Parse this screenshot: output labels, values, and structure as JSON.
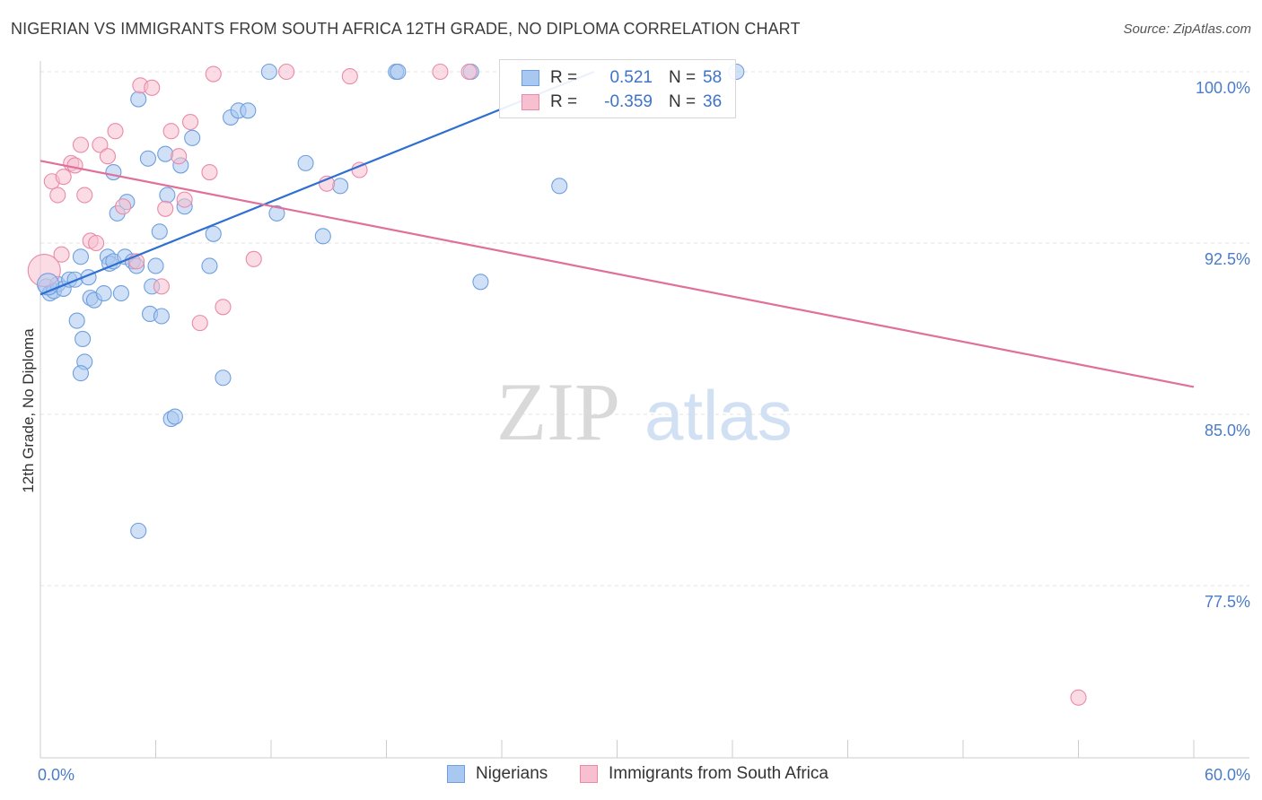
{
  "title": "NIGERIAN VS IMMIGRANTS FROM SOUTH AFRICA 12TH GRADE, NO DIPLOMA CORRELATION CHART",
  "source": "Source: ZipAtlas.com",
  "watermark": {
    "zip": "ZIP",
    "atlas": "atlas"
  },
  "legend": {
    "rows": [
      {
        "r_label": "R =",
        "r_value": "0.521",
        "n_label": "N =",
        "n_value": "58",
        "color": "#a9c8f1",
        "border": "#6f9fde"
      },
      {
        "r_label": "R =",
        "r_value": "-0.359",
        "n_label": "N =",
        "n_value": "36",
        "color": "#f7bfd0",
        "border": "#e98aa8"
      }
    ]
  },
  "bottom_legend": {
    "items": [
      {
        "label": "Nigerians",
        "color": "#a9c8f1",
        "border": "#6f9fde"
      },
      {
        "label": "Immigrants from South Africa",
        "color": "#f7bfd0",
        "border": "#e98aa8"
      }
    ]
  },
  "chart_data": {
    "type": "scatter",
    "title": "NIGERIAN VS IMMIGRANTS FROM SOUTH AFRICA 12TH GRADE, NO DIPLOMA CORRELATION CHART",
    "xlabel": "",
    "ylabel": "12th Grade, No Diploma",
    "xlim": [
      0,
      60
    ],
    "ylim": [
      71.2,
      100.7
    ],
    "x_tick_labels": [
      "0.0%",
      "60.0%"
    ],
    "y_ticks": [
      100.0,
      92.5,
      85.0,
      77.5
    ],
    "y_tick_labels": [
      "100.0%",
      "92.5%",
      "85.0%",
      "77.5%"
    ],
    "grid": true,
    "series": [
      {
        "name": "Nigerians",
        "color": "#6f9fde",
        "fill": "#a9c8f1",
        "trend": {
          "x": [
            0,
            28.8
          ],
          "y": [
            90.25,
            100.0
          ]
        },
        "points": [
          [
            0.3,
            90.6
          ],
          [
            0.5,
            90.3
          ],
          [
            0.7,
            90.4
          ],
          [
            0.9,
            90.7
          ],
          [
            1.2,
            90.5
          ],
          [
            1.5,
            90.9
          ],
          [
            1.8,
            90.9
          ],
          [
            2.1,
            91.9
          ],
          [
            2.5,
            91.0
          ],
          [
            2.6,
            90.1
          ],
          [
            2.8,
            90.0
          ],
          [
            3.3,
            90.3
          ],
          [
            3.5,
            91.9
          ],
          [
            3.6,
            91.6
          ],
          [
            3.8,
            91.7
          ],
          [
            4.0,
            93.8
          ],
          [
            4.2,
            90.3
          ],
          [
            4.4,
            91.9
          ],
          [
            4.5,
            94.3
          ],
          [
            4.8,
            91.7
          ],
          [
            5.0,
            91.5
          ],
          [
            5.6,
            96.2
          ],
          [
            5.7,
            89.4
          ],
          [
            5.8,
            90.6
          ],
          [
            6.0,
            91.5
          ],
          [
            6.2,
            93.0
          ],
          [
            6.3,
            89.3
          ],
          [
            6.5,
            96.4
          ],
          [
            6.6,
            94.6
          ],
          [
            6.8,
            84.8
          ],
          [
            7.0,
            84.9
          ],
          [
            7.3,
            95.9
          ],
          [
            7.5,
            94.1
          ],
          [
            7.9,
            97.1
          ],
          [
            8.8,
            91.5
          ],
          [
            9.0,
            92.9
          ],
          [
            9.5,
            86.6
          ],
          [
            9.9,
            98.0
          ],
          [
            10.3,
            98.3
          ],
          [
            10.8,
            98.3
          ],
          [
            11.9,
            100.0
          ],
          [
            12.3,
            93.8
          ],
          [
            13.8,
            96.0
          ],
          [
            14.7,
            92.8
          ],
          [
            15.6,
            95.0
          ],
          [
            18.5,
            100.0
          ],
          [
            18.6,
            100.0
          ],
          [
            22.4,
            100.0
          ],
          [
            22.9,
            90.8
          ],
          [
            27.0,
            95.0
          ],
          [
            36.2,
            100.0
          ],
          [
            3.8,
            95.6
          ],
          [
            2.2,
            88.3
          ],
          [
            1.9,
            89.1
          ],
          [
            2.3,
            87.3
          ],
          [
            2.1,
            86.8
          ],
          [
            5.1,
            79.9
          ],
          [
            5.1,
            98.8
          ]
        ]
      },
      {
        "name": "Immigrants from South Africa",
        "color": "#e98aa8",
        "fill": "#f7bfd0",
        "trend": {
          "x": [
            0,
            60
          ],
          "y": [
            96.1,
            86.2
          ]
        },
        "points": [
          [
            0.2,
            91.3
          ],
          [
            0.6,
            95.2
          ],
          [
            0.9,
            94.6
          ],
          [
            1.2,
            95.4
          ],
          [
            1.6,
            96.0
          ],
          [
            1.8,
            95.9
          ],
          [
            2.1,
            96.8
          ],
          [
            2.3,
            94.6
          ],
          [
            2.6,
            92.6
          ],
          [
            2.9,
            92.5
          ],
          [
            3.1,
            96.8
          ],
          [
            3.5,
            96.3
          ],
          [
            3.9,
            97.4
          ],
          [
            4.3,
            94.1
          ],
          [
            5.0,
            91.7
          ],
          [
            5.2,
            99.4
          ],
          [
            5.8,
            99.3
          ],
          [
            6.3,
            90.6
          ],
          [
            6.5,
            94.0
          ],
          [
            6.8,
            97.4
          ],
          [
            7.2,
            96.3
          ],
          [
            7.5,
            94.4
          ],
          [
            7.8,
            97.8
          ],
          [
            8.3,
            89.0
          ],
          [
            8.8,
            95.6
          ],
          [
            9.0,
            99.9
          ],
          [
            9.5,
            89.7
          ],
          [
            11.1,
            91.8
          ],
          [
            12.8,
            100.0
          ],
          [
            14.9,
            95.1
          ],
          [
            16.1,
            99.8
          ],
          [
            16.6,
            95.7
          ],
          [
            20.8,
            100.0
          ],
          [
            22.3,
            100.0
          ],
          [
            54.0,
            72.6
          ],
          [
            1.1,
            92.0
          ]
        ]
      }
    ]
  }
}
